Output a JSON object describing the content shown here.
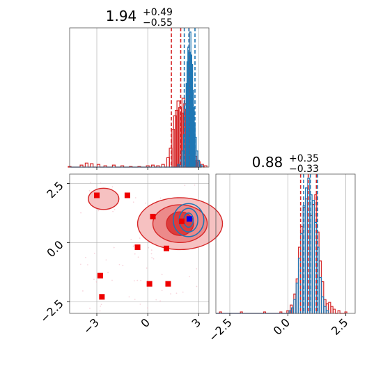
{
  "chart_data": {
    "type": "corner",
    "colors": {
      "red": "#d62728",
      "blue": "#1f77b4",
      "red_light": "#f2a1a1",
      "red_mid": "#e66060",
      "grid": "#b0b0b0"
    },
    "param1": {
      "title_value": "1.94",
      "title_plus": "+0.49",
      "title_minus": "−0.55",
      "xlim": [
        -4.6,
        3.6
      ],
      "ticks": [
        {
          "v": -3,
          "label": "−3"
        },
        {
          "v": 0,
          "label": "0"
        },
        {
          "v": 3,
          "label": "3"
        }
      ],
      "red_quantiles": [
        1.39,
        1.94,
        2.43
      ],
      "blue_quantiles": [
        2.15,
        2.42,
        2.78
      ],
      "red_hist": {
        "bin_width": 0.164,
        "x": [
          -4.6,
          -3.9,
          -3.6,
          -3.3,
          -2.9,
          -2.5,
          -2.0,
          -1.5,
          -1.0,
          -0.5,
          0.0,
          0.3,
          0.6,
          0.9,
          1.2,
          1.35,
          1.5,
          1.6,
          1.7,
          1.8,
          1.9,
          2.0,
          2.1,
          2.2,
          2.3,
          2.4,
          2.5,
          2.6,
          2.7,
          2.8,
          2.9,
          3.0,
          3.2,
          3.4
        ],
        "y": [
          0.005,
          0.015,
          0.03,
          0.025,
          0.02,
          0.01,
          0.015,
          0.01,
          0.005,
          0.005,
          0.01,
          0.015,
          0.01,
          0.02,
          0.07,
          0.14,
          0.28,
          0.38,
          0.42,
          0.49,
          0.44,
          0.4,
          0.51,
          0.47,
          0.43,
          0.36,
          0.33,
          0.28,
          0.15,
          0.08,
          0.05,
          0.04,
          0.02,
          0.01
        ]
      },
      "blue_hist": {
        "bin_width": 0.082,
        "x": [
          1.8,
          1.95,
          2.05,
          2.15,
          2.22,
          2.3,
          2.35,
          2.4,
          2.45,
          2.5,
          2.55,
          2.6,
          2.65,
          2.7,
          2.75,
          2.82,
          2.9,
          3.0,
          3.1,
          3.2
        ],
        "y": [
          0.02,
          0.07,
          0.12,
          0.24,
          0.46,
          0.62,
          0.78,
          0.89,
          0.85,
          1.0,
          0.83,
          0.76,
          0.57,
          0.44,
          0.33,
          0.22,
          0.12,
          0.05,
          0.02,
          0.01
        ]
      }
    },
    "param2": {
      "title_value": "0.88",
      "title_plus": "+0.35",
      "title_minus": "−0.33",
      "xlim": [
        -3.1,
        2.9
      ],
      "ylim": [
        -3.0,
        2.9
      ],
      "ticks": [
        {
          "v": -2.5,
          "label": "−2.5"
        },
        {
          "v": 0.0,
          "label": "0.0"
        },
        {
          "v": 2.5,
          "label": "2.5"
        }
      ],
      "red_quantiles": [
        0.55,
        0.88,
        1.23
      ],
      "blue_quantiles": [
        0.68,
        0.97,
        1.28
      ],
      "red_hist": {
        "bin_width": 0.088,
        "x": [
          -2.9,
          -2.0,
          -1.0,
          -0.3,
          0.0,
          0.15,
          0.3,
          0.4,
          0.5,
          0.6,
          0.7,
          0.8,
          0.9,
          1.0,
          1.1,
          1.2,
          1.3,
          1.4,
          1.5,
          1.6,
          1.7,
          1.8,
          1.9,
          2.0,
          2.2,
          2.5
        ],
        "y": [
          0.01,
          0.01,
          0.01,
          0.01,
          0.02,
          0.06,
          0.14,
          0.25,
          0.48,
          0.63,
          0.77,
          0.83,
          0.9,
          0.71,
          0.79,
          0.86,
          0.59,
          0.38,
          0.23,
          0.1,
          0.07,
          0.08,
          0.05,
          0.03,
          0.02,
          0.01
        ]
      },
      "blue_hist": {
        "bin_width": 0.088,
        "x": [
          0.1,
          0.2,
          0.3,
          0.4,
          0.5,
          0.6,
          0.7,
          0.8,
          0.9,
          1.0,
          1.1,
          1.2,
          1.3,
          1.4,
          1.5,
          1.6,
          1.7
        ],
        "y": [
          0.02,
          0.04,
          0.1,
          0.22,
          0.4,
          0.58,
          0.78,
          0.91,
          0.98,
          0.86,
          0.82,
          0.66,
          0.48,
          0.26,
          0.12,
          0.05,
          0.02
        ]
      }
    },
    "scatter_points": [
      {
        "x": -3.0,
        "y": 2.0
      },
      {
        "x": -1.2,
        "y": 2.0
      },
      {
        "x": 0.3,
        "y": 1.1
      },
      {
        "x": 2.0,
        "y": 0.9
      },
      {
        "x": -0.6,
        "y": -0.2
      },
      {
        "x": 1.1,
        "y": -0.25
      },
      {
        "x": -2.8,
        "y": -1.4
      },
      {
        "x": 0.1,
        "y": -1.75
      },
      {
        "x": 1.2,
        "y": -1.75
      },
      {
        "x": -2.7,
        "y": -2.3
      }
    ],
    "scatter_highlight": {
      "x": 2.45,
      "y": 1.0
    },
    "red_contours": {
      "center": [
        1.9,
        0.8
      ],
      "levels": [
        {
          "rx": 2.5,
          "ry": 1.1,
          "fill": "#f6c1c1"
        },
        {
          "rx": 1.6,
          "ry": 0.8,
          "fill": "#ec8a8a"
        },
        {
          "rx": 0.8,
          "ry": 0.5,
          "fill": "#dc3c3c"
        }
      ],
      "satellite": {
        "cx": -2.6,
        "cy": 1.85,
        "rx": 0.9,
        "ry": 0.45
      }
    },
    "blue_contours": {
      "center": [
        2.4,
        0.95
      ],
      "levels": [
        {
          "rx": 0.9,
          "ry": 0.7
        },
        {
          "rx": 0.55,
          "ry": 0.5
        },
        {
          "rx": 0.28,
          "ry": 0.3
        }
      ]
    }
  }
}
